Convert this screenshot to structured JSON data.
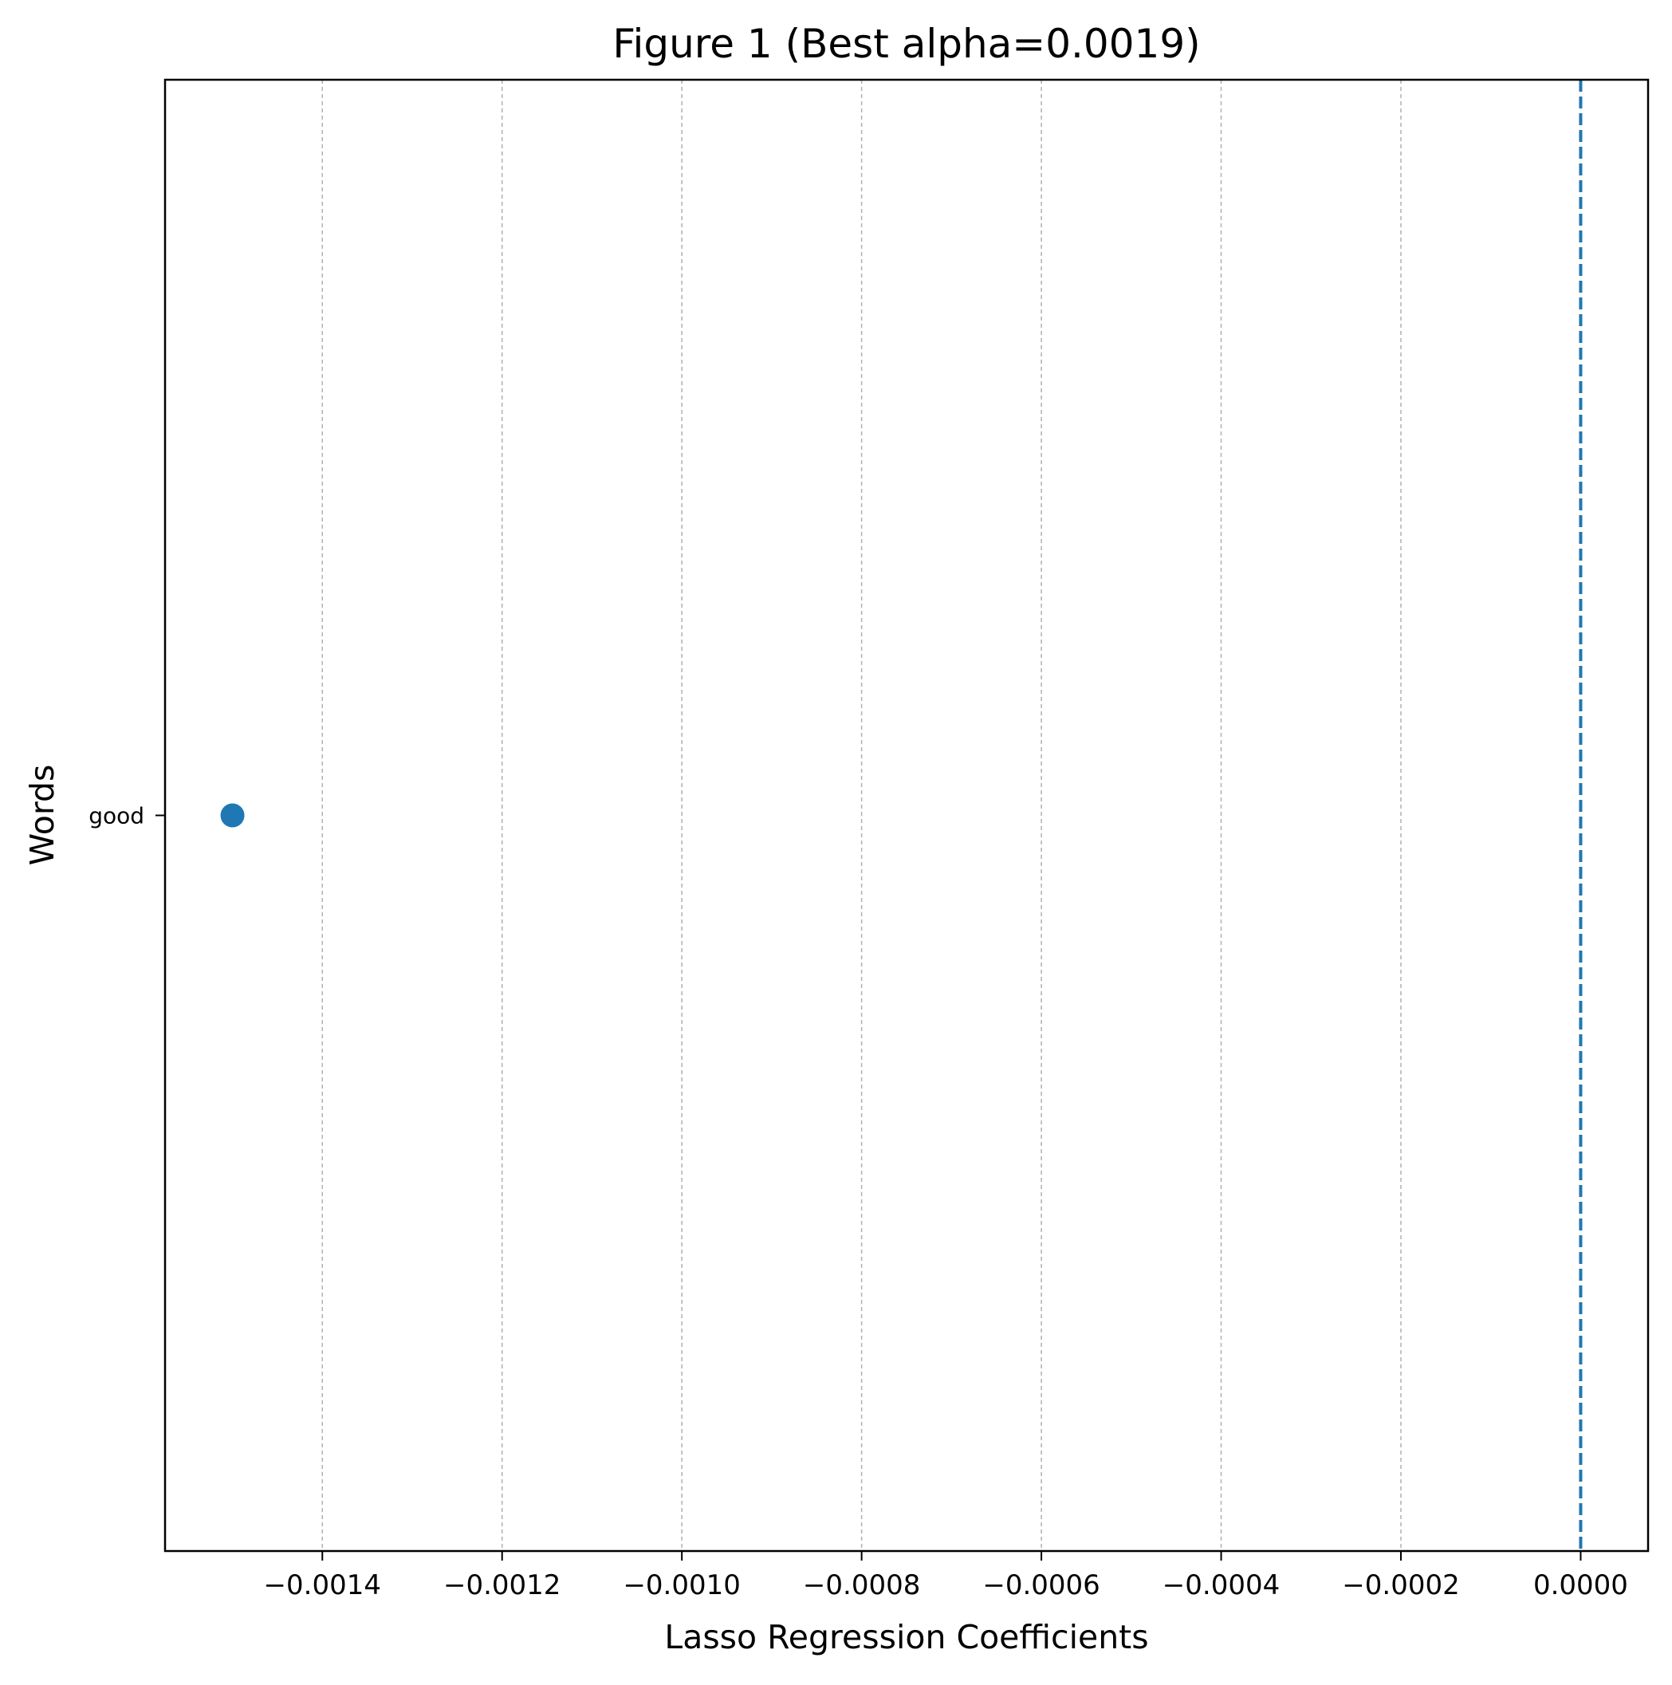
{
  "chart_data": {
    "type": "scatter",
    "title": "Figure 1 (Best alpha=0.0019)",
    "xlabel": "Lasso Regression Coefficients",
    "ylabel": "Words",
    "xlim": [
      -0.001575,
      7.5e-05
    ],
    "x_ticks": [
      -0.0014,
      -0.0012,
      -0.001,
      -0.0008,
      -0.0006,
      -0.0004,
      -0.0002,
      0.0
    ],
    "x_tick_labels": [
      "−0.0014",
      "−0.0012",
      "−0.0010",
      "−0.0008",
      "−0.0006",
      "−0.0004",
      "−0.0002",
      "0.0000"
    ],
    "categories": [
      "good"
    ],
    "values": [
      -0.0015
    ],
    "reference_line_x": 0.0,
    "grid": "x-dashed",
    "colors": {
      "point": "#1f77b4",
      "reference_line": "#1f77b4",
      "grid": "#b0b0b0"
    }
  }
}
